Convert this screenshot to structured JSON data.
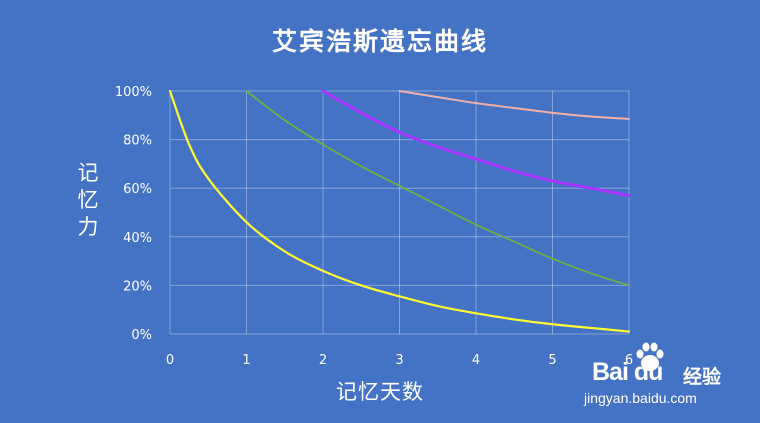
{
  "chart_data": {
    "type": "line",
    "title": "艾宾浩斯遗忘曲线",
    "xlabel": "记忆天数",
    "ylabel": "记忆力",
    "xlim": [
      0,
      6
    ],
    "ylim": [
      0,
      100
    ],
    "x_ticks": [
      "0",
      "1",
      "2",
      "3",
      "4",
      "5",
      "6"
    ],
    "y_ticks": [
      "0%",
      "20%",
      "40%",
      "60%",
      "80%",
      "100%"
    ],
    "grid": true,
    "legend": "none",
    "series": [
      {
        "color": "#ffff33",
        "width": 2.2,
        "x": [
          0,
          0.25,
          0.5,
          1,
          1.5,
          2,
          2.5,
          3,
          3.5,
          4,
          4.5,
          5,
          5.5,
          6
        ],
        "y": [
          100,
          78,
          64,
          46,
          34,
          26,
          20,
          15.5,
          11.5,
          8.5,
          6,
          4,
          2.5,
          1
        ]
      },
      {
        "color": "#70ad47",
        "width": 1.8,
        "x": [
          1,
          1.5,
          2,
          2.5,
          3,
          3.5,
          4,
          4.5,
          5,
          5.5,
          6
        ],
        "y": [
          100,
          88,
          78,
          69,
          61,
          53,
          45,
          38,
          31,
          25,
          20
        ]
      },
      {
        "color": "#a633ff",
        "width": 3,
        "x": [
          2,
          2.5,
          3,
          3.5,
          4,
          4.5,
          5,
          5.5,
          6
        ],
        "y": [
          100,
          91,
          83,
          77,
          72,
          67,
          63,
          60,
          57
        ]
      },
      {
        "color": "#f4b0a8",
        "width": 2,
        "x": [
          3,
          3.5,
          4,
          4.5,
          5,
          5.5,
          6
        ],
        "y": [
          100,
          97.5,
          95,
          93,
          91,
          89.5,
          88.5
        ]
      }
    ]
  },
  "watermark": {
    "logo": "Bai  du",
    "brand": "经验",
    "url": "jingyan.baidu.com"
  }
}
